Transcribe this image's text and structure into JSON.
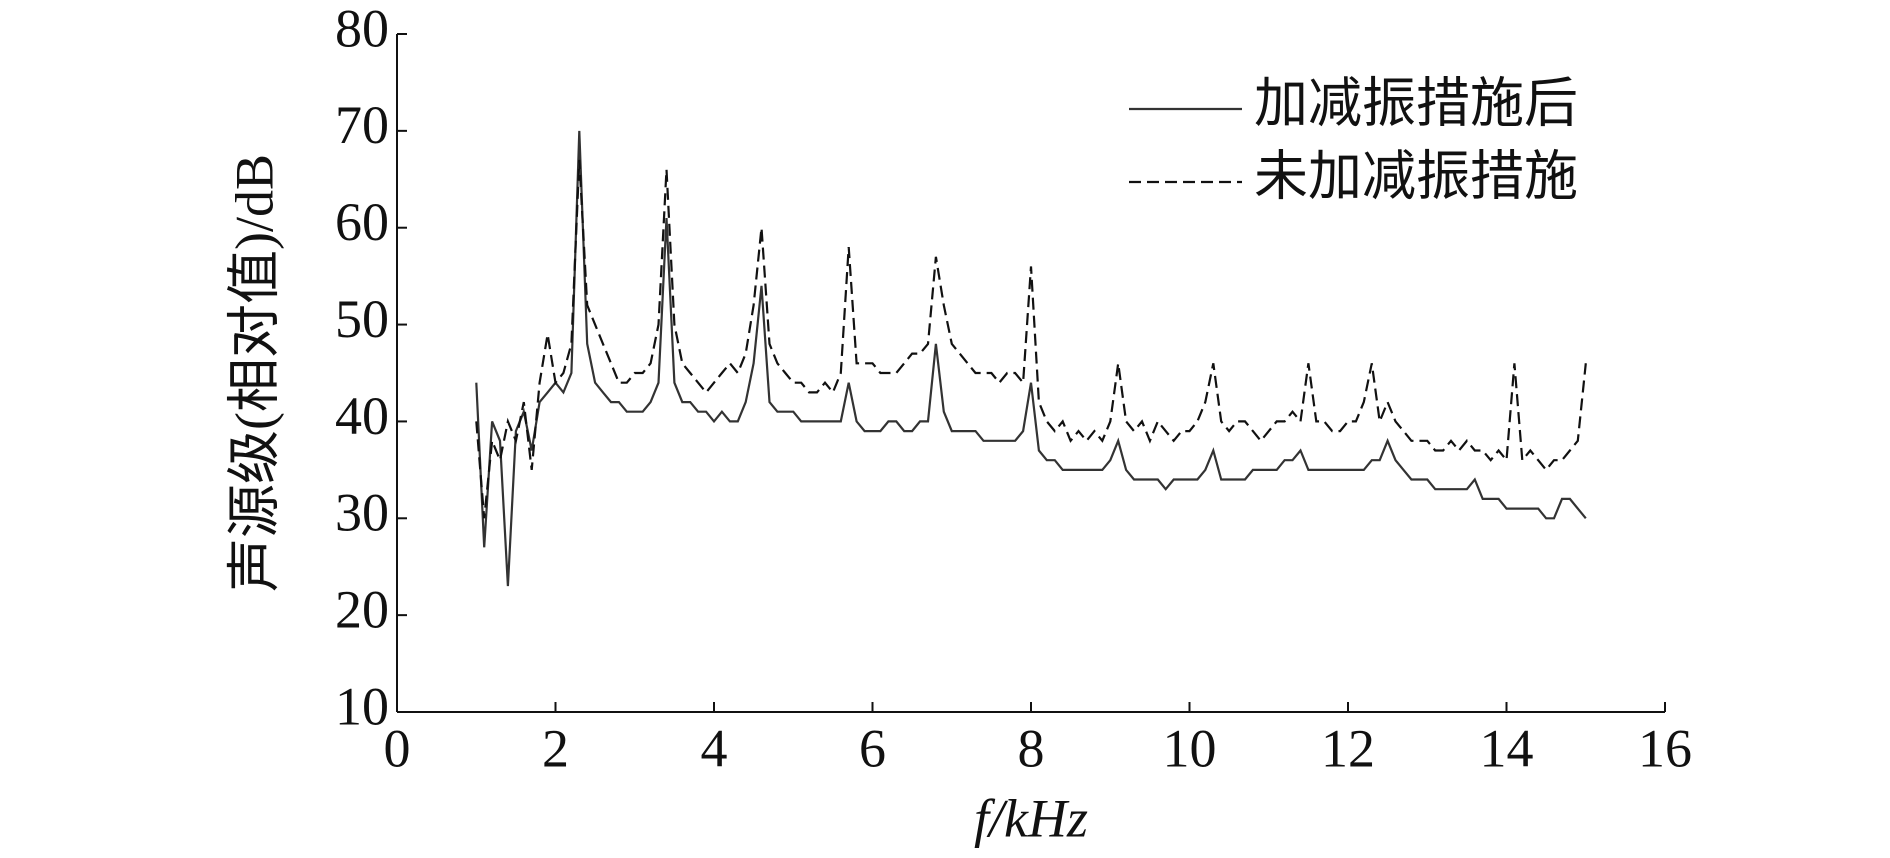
{
  "chart_data": {
    "type": "line",
    "xlabel": "f/kHz",
    "ylabel": "声源级(相对值)/dB",
    "xlim": [
      0,
      16
    ],
    "xticks": [
      0,
      2,
      4,
      6,
      8,
      10,
      12,
      14,
      16
    ],
    "ylim": [
      10,
      80
    ],
    "yticks": [
      10,
      20,
      30,
      40,
      50,
      60,
      70,
      80
    ],
    "legend": "upper right",
    "x": [
      1.0,
      1.1,
      1.2,
      1.3,
      1.4,
      1.5,
      1.6,
      1.7,
      1.8,
      1.9,
      2.0,
      2.1,
      2.2,
      2.3,
      2.4,
      2.5,
      2.6,
      2.7,
      2.8,
      2.9,
      3.0,
      3.1,
      3.2,
      3.3,
      3.4,
      3.5,
      3.6,
      3.7,
      3.8,
      3.9,
      4.0,
      4.1,
      4.2,
      4.3,
      4.4,
      4.5,
      4.6,
      4.7,
      4.8,
      4.9,
      5.0,
      5.1,
      5.2,
      5.3,
      5.4,
      5.5,
      5.6,
      5.7,
      5.8,
      5.9,
      6.0,
      6.1,
      6.2,
      6.3,
      6.4,
      6.5,
      6.6,
      6.7,
      6.8,
      6.9,
      7.0,
      7.1,
      7.2,
      7.3,
      7.4,
      7.5,
      7.6,
      7.7,
      7.8,
      7.9,
      8.0,
      8.1,
      8.2,
      8.3,
      8.4,
      8.5,
      8.6,
      8.7,
      8.8,
      8.9,
      9.0,
      9.1,
      9.2,
      9.3,
      9.4,
      9.5,
      9.6,
      9.7,
      9.8,
      9.9,
      10.0,
      10.1,
      10.2,
      10.3,
      10.4,
      10.5,
      10.6,
      10.7,
      10.8,
      10.9,
      11.0,
      11.1,
      11.2,
      11.3,
      11.4,
      11.5,
      11.6,
      11.7,
      11.8,
      11.9,
      12.0,
      12.1,
      12.2,
      12.3,
      12.4,
      12.5,
      12.6,
      12.7,
      12.8,
      12.9,
      13.0,
      13.1,
      13.2,
      13.3,
      13.4,
      13.5,
      13.6,
      13.7,
      13.8,
      13.9,
      14.0,
      14.1,
      14.2,
      14.3,
      14.4,
      14.5,
      14.6,
      14.7,
      14.8,
      14.9,
      15.0
    ],
    "series": [
      {
        "name": "加减振措施后",
        "color": "#333333",
        "dash": "solid",
        "values": [
          44,
          27,
          40,
          38,
          23,
          39,
          41,
          37,
          42,
          43,
          44,
          43,
          45,
          70,
          48,
          44,
          43,
          42,
          42,
          41,
          41,
          41,
          42,
          44,
          61,
          44,
          42,
          42,
          41,
          41,
          40,
          41,
          40,
          40,
          42,
          46,
          54,
          42,
          41,
          41,
          41,
          40,
          40,
          40,
          40,
          40,
          40,
          44,
          40,
          39,
          39,
          39,
          40,
          40,
          39,
          39,
          40,
          40,
          48,
          41,
          39,
          39,
          39,
          39,
          38,
          38,
          38,
          38,
          38,
          39,
          44,
          37,
          36,
          36,
          35,
          35,
          35,
          35,
          35,
          35,
          36,
          38,
          35,
          34,
          34,
          34,
          34,
          33,
          34,
          34,
          34,
          34,
          35,
          37,
          34,
          34,
          34,
          34,
          35,
          35,
          35,
          35,
          36,
          36,
          37,
          35,
          35,
          35,
          35,
          35,
          35,
          35,
          35,
          36,
          36,
          38,
          36,
          35,
          34,
          34,
          34,
          33,
          33,
          33,
          33,
          33,
          34,
          32,
          32,
          32,
          31,
          31,
          31,
          31,
          31,
          30,
          30,
          32,
          32,
          31,
          30
        ]
      },
      {
        "name": "未加减振措施",
        "color": "#111111",
        "dash": "dashed",
        "values": [
          40,
          30,
          38,
          36,
          40,
          38,
          42,
          35,
          44,
          49,
          44,
          45,
          48,
          67,
          52,
          50,
          48,
          46,
          44,
          44,
          45,
          45,
          46,
          50,
          66,
          50,
          46,
          45,
          44,
          43,
          44,
          45,
          46,
          45,
          47,
          52,
          60,
          48,
          46,
          45,
          44,
          44,
          43,
          43,
          44,
          43,
          45,
          58,
          46,
          46,
          46,
          45,
          45,
          45,
          46,
          47,
          47,
          48,
          57,
          52,
          48,
          47,
          46,
          45,
          45,
          45,
          44,
          45,
          45,
          44,
          56,
          42,
          40,
          39,
          40,
          38,
          39,
          38,
          39,
          38,
          40,
          46,
          40,
          39,
          40,
          38,
          40,
          39,
          38,
          39,
          39,
          40,
          42,
          46,
          40,
          39,
          40,
          40,
          39,
          38,
          39,
          40,
          40,
          41,
          40,
          46,
          40,
          40,
          39,
          39,
          40,
          40,
          42,
          46,
          40,
          42,
          40,
          39,
          38,
          38,
          38,
          37,
          37,
          38,
          37,
          38,
          37,
          37,
          36,
          37,
          36,
          46,
          36,
          37,
          36,
          35,
          36,
          36,
          37,
          38,
          46
        ]
      }
    ]
  }
}
